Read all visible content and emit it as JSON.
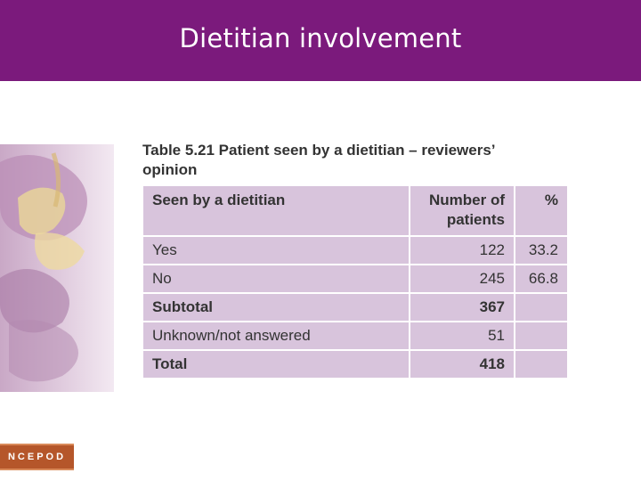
{
  "header": {
    "title": "Dietitian involvement",
    "background_color": "#7b1a7c"
  },
  "table": {
    "caption": "Table 5.21 Patient seen by a dietitian – reviewers’ opinion",
    "headers": [
      "Seen by a dietitian",
      "Number of patients",
      "%"
    ],
    "rows": [
      {
        "label": "Yes",
        "count": "122",
        "percent": "33.2",
        "bold": false
      },
      {
        "label": "No",
        "count": "245",
        "percent": "66.8",
        "bold": false
      },
      {
        "label": "Subtotal",
        "count": "367",
        "percent": "",
        "bold": true
      },
      {
        "label": "Unknown/not answered",
        "count": "51",
        "percent": "",
        "bold": false
      },
      {
        "label": "Total",
        "count": "418",
        "percent": "",
        "bold": true
      }
    ],
    "cell_color": "#d8c4dc"
  },
  "logo": {
    "text": "NCEPOD",
    "color": "#b5562a"
  },
  "side_image": {
    "icon": "anatomy-illustration-icon"
  }
}
